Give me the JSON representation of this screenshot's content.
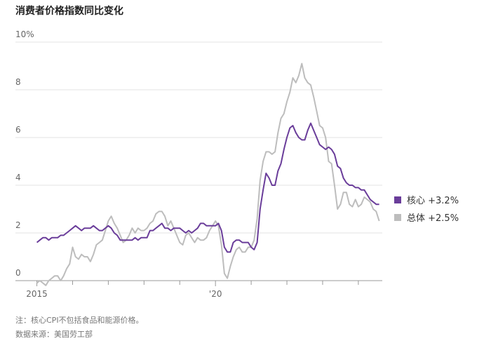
{
  "chart_data": {
    "type": "line",
    "title": "消费者价格指数同比变化",
    "notes": [
      "注：核心CPI不包括食品和能源价格。",
      "数据来源：美国劳工部"
    ],
    "x": [
      2015,
      2015.083,
      2015.167,
      2015.25,
      2015.333,
      2015.417,
      2015.5,
      2015.583,
      2015.667,
      2015.75,
      2015.833,
      2015.917,
      2016,
      2016.083,
      2016.167,
      2016.25,
      2016.333,
      2016.417,
      2016.5,
      2016.583,
      2016.667,
      2016.75,
      2016.833,
      2016.917,
      2017,
      2017.083,
      2017.167,
      2017.25,
      2017.333,
      2017.417,
      2017.5,
      2017.583,
      2017.667,
      2017.75,
      2017.833,
      2017.917,
      2018,
      2018.083,
      2018.167,
      2018.25,
      2018.333,
      2018.417,
      2018.5,
      2018.583,
      2018.667,
      2018.75,
      2018.833,
      2018.917,
      2019,
      2019.083,
      2019.167,
      2019.25,
      2019.333,
      2019.417,
      2019.5,
      2019.583,
      2019.667,
      2019.75,
      2019.833,
      2019.917,
      2020,
      2020.083,
      2020.167,
      2020.25,
      2020.333,
      2020.417,
      2020.5,
      2020.583,
      2020.667,
      2020.75,
      2020.833,
      2020.917,
      2021,
      2021.083,
      2021.167,
      2021.25,
      2021.333,
      2021.417,
      2021.5,
      2021.583,
      2021.667,
      2021.75,
      2021.833,
      2021.917,
      2022,
      2022.083,
      2022.167,
      2022.25,
      2022.333,
      2022.417,
      2022.5,
      2022.583,
      2022.667,
      2022.75,
      2022.833,
      2022.917,
      2023,
      2023.083,
      2023.167,
      2023.25,
      2023.333,
      2023.417,
      2023.5,
      2023.583,
      2023.667,
      2023.75,
      2023.833,
      2023.917,
      2024,
      2024.083,
      2024.167,
      2024.25,
      2024.333,
      2024.417,
      2024.5,
      2024.583
    ],
    "series": [
      {
        "name": "核心 +3.2%",
        "color": "#6a3d9a",
        "values": [
          1.6,
          1.7,
          1.8,
          1.8,
          1.7,
          1.8,
          1.8,
          1.8,
          1.9,
          1.9,
          2.0,
          2.1,
          2.2,
          2.3,
          2.2,
          2.1,
          2.2,
          2.2,
          2.2,
          2.3,
          2.2,
          2.1,
          2.1,
          2.2,
          2.3,
          2.2,
          2.0,
          1.9,
          1.7,
          1.7,
          1.7,
          1.7,
          1.7,
          1.8,
          1.7,
          1.8,
          1.8,
          1.8,
          2.1,
          2.1,
          2.2,
          2.3,
          2.4,
          2.2,
          2.2,
          2.1,
          2.2,
          2.2,
          2.2,
          2.1,
          2.0,
          2.1,
          2.0,
          2.1,
          2.2,
          2.4,
          2.4,
          2.3,
          2.3,
          2.3,
          2.3,
          2.4,
          2.1,
          1.4,
          1.2,
          1.2,
          1.6,
          1.7,
          1.7,
          1.6,
          1.6,
          1.6,
          1.4,
          1.3,
          1.6,
          3.0,
          3.8,
          4.5,
          4.3,
          4.0,
          4.0,
          4.6,
          4.9,
          5.5,
          6.0,
          6.4,
          6.5,
          6.2,
          6.0,
          5.9,
          5.9,
          6.3,
          6.6,
          6.3,
          6.0,
          5.7,
          5.6,
          5.5,
          5.6,
          5.5,
          5.3,
          4.8,
          4.7,
          4.3,
          4.1,
          4.0,
          4.0,
          3.9,
          3.9,
          3.8,
          3.8,
          3.6,
          3.4,
          3.3,
          3.2,
          3.2
        ]
      },
      {
        "name": "总体 +2.5%",
        "color": "#bdbdbd",
        "values": [
          -0.1,
          0.0,
          -0.1,
          -0.2,
          0.0,
          0.1,
          0.2,
          0.2,
          0.0,
          0.2,
          0.5,
          0.7,
          1.4,
          1.0,
          0.9,
          1.1,
          1.0,
          1.0,
          0.8,
          1.1,
          1.5,
          1.6,
          1.7,
          2.1,
          2.5,
          2.7,
          2.4,
          2.2,
          1.9,
          1.6,
          1.7,
          1.9,
          2.2,
          2.0,
          2.2,
          2.1,
          2.1,
          2.2,
          2.4,
          2.5,
          2.8,
          2.9,
          2.9,
          2.7,
          2.3,
          2.5,
          2.2,
          1.9,
          1.6,
          1.5,
          1.9,
          2.0,
          1.8,
          1.6,
          1.8,
          1.7,
          1.7,
          1.8,
          2.1,
          2.3,
          2.5,
          2.3,
          1.5,
          0.3,
          0.1,
          0.6,
          1.0,
          1.3,
          1.4,
          1.2,
          1.2,
          1.4,
          1.4,
          1.7,
          2.6,
          4.2,
          5.0,
          5.4,
          5.4,
          5.3,
          5.4,
          6.2,
          6.8,
          7.0,
          7.5,
          7.9,
          8.5,
          8.3,
          8.6,
          9.1,
          8.5,
          8.3,
          8.2,
          7.7,
          7.1,
          6.5,
          6.4,
          6.0,
          5.0,
          4.9,
          4.0,
          3.0,
          3.2,
          3.7,
          3.7,
          3.2,
          3.1,
          3.4,
          3.1,
          3.2,
          3.5,
          3.4,
          3.3,
          3.0,
          2.9,
          2.5
        ]
      }
    ],
    "xlim": [
      2014.4,
      2024.67
    ],
    "xticks": [
      2015,
      {
        "value": 2020,
        "label": "'20"
      }
    ],
    "xminorticks": [
      2016,
      2017,
      2018,
      2019,
      2021,
      2022,
      2023,
      2024
    ],
    "ylim": [
      0,
      10
    ],
    "yticks": [
      0,
      2,
      4,
      6,
      8,
      {
        "value": 10,
        "label": "10%"
      }
    ],
    "grid": true
  }
}
